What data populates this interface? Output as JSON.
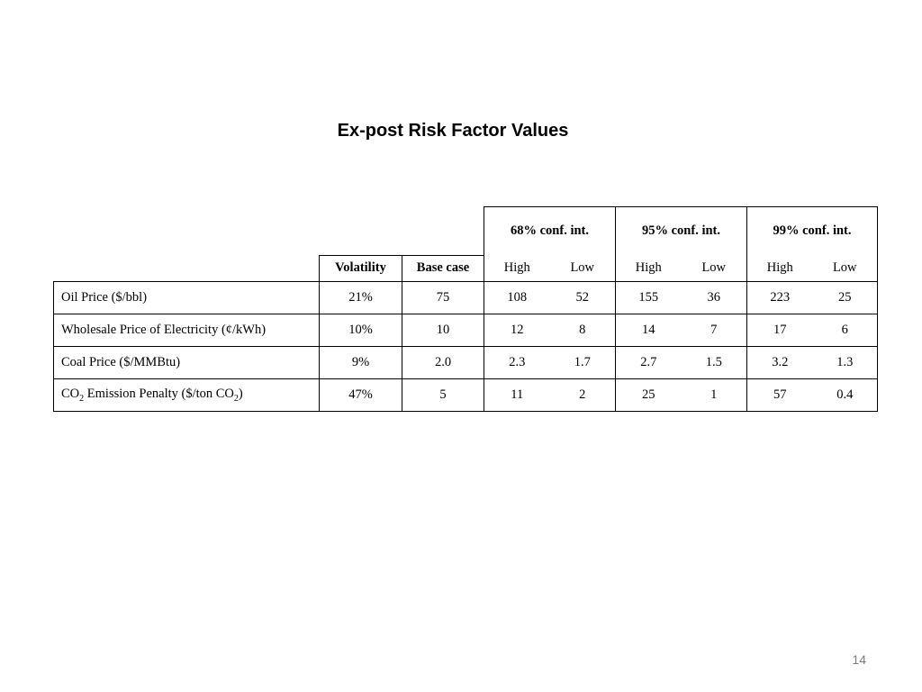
{
  "slide": {
    "title": "Ex-post Risk Factor Values",
    "page_number": "14"
  },
  "table": {
    "groups": [
      "68% conf. int.",
      "95% conf. int.",
      "99% conf. int."
    ],
    "col_volatility": "Volatility",
    "col_base_case": "Base case",
    "col_high": "High",
    "col_low": "Low",
    "rows": [
      {
        "label": "Oil Price ($/bbl)",
        "volatility": "21%",
        "base": "75",
        "h68": "108",
        "l68": "52",
        "h95": "155",
        "l95": "36",
        "h99": "223",
        "l99": "25"
      },
      {
        "label": "Wholesale Price of Electricity (¢/kWh)",
        "volatility": "10%",
        "base": "10",
        "h68": "12",
        "l68": "8",
        "h95": "14",
        "l95": "7",
        "h99": "17",
        "l99": "6"
      },
      {
        "label": "Coal Price ($/MMBtu)",
        "volatility": "9%",
        "base": "2.0",
        "h68": "2.3",
        "l68": "1.7",
        "h95": "2.7",
        "l95": "1.5",
        "h99": "3.2",
        "l99": "1.3"
      },
      {
        "label_prefix": "CO",
        "label_sub": "2",
        "label_mid": " Emission Penalty ($/ton CO",
        "label_sub2": "2",
        "label_suffix": ")",
        "volatility": "47%",
        "base": "5",
        "h68": "11",
        "l68": "2",
        "h95": "25",
        "l95": "1",
        "h99": "57",
        "l99": "0.4"
      }
    ]
  }
}
